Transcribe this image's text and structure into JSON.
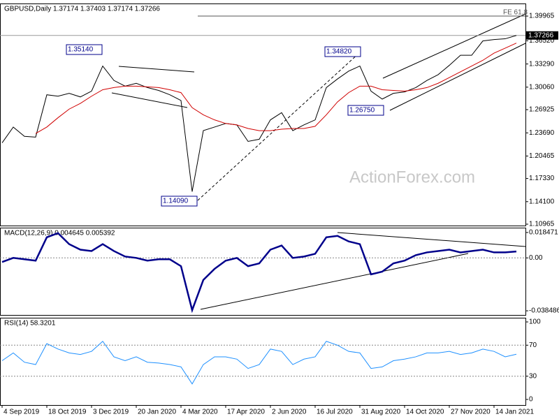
{
  "watermark": "ActionForex.com",
  "chart_data": [
    {
      "type": "line",
      "title": "GBPUSD,Daily  1.37174 1.37403 1.37174 1.37266",
      "categories": [
        "4 Sep 2019",
        null,
        null,
        null,
        "18 Oct 2019",
        null,
        null,
        null,
        "3 Dec 2019",
        null,
        null,
        null,
        "20 Jan 2020",
        null,
        null,
        null,
        "4 Mar 2020",
        null,
        null,
        null,
        "17 Apr 2020",
        null,
        null,
        null,
        "2 Jun 2020",
        null,
        null,
        null,
        "16 Jul 2020",
        null,
        null,
        null,
        "31 Aug 2020",
        null,
        null,
        null,
        "14 Oct 2020",
        null,
        null,
        null,
        "27 Nov 2020",
        null,
        null,
        null,
        "14 Jan 2021",
        null,
        null
      ],
      "series": [
        {
          "color": "#000000",
          "values": [
            1.223,
            1.245,
            1.232,
            1.231,
            1.29,
            1.288,
            1.292,
            1.287,
            1.295,
            1.33,
            1.31,
            1.302,
            1.306,
            1.3,
            1.296,
            1.29,
            1.282,
            1.155,
            1.24,
            1.245,
            1.25,
            1.248,
            1.225,
            1.228,
            1.255,
            1.265,
            1.24,
            1.248,
            1.255,
            1.3,
            1.312,
            1.323,
            1.33,
            1.295,
            1.284,
            1.292,
            1.294,
            1.3,
            1.31,
            1.318,
            1.331,
            1.345,
            1.345,
            1.365,
            1.367,
            1.368,
            1.3727
          ]
        },
        {
          "color": "#d00000",
          "values": [
            null,
            null,
            null,
            1.236,
            1.245,
            1.258,
            1.27,
            1.278,
            1.288,
            1.297,
            1.3,
            1.302,
            1.302,
            1.301,
            1.3,
            1.297,
            1.293,
            1.272,
            1.262,
            1.255,
            1.25,
            1.248,
            1.243,
            1.24,
            1.24,
            1.242,
            1.243,
            1.243,
            1.246,
            1.262,
            1.28,
            1.293,
            1.302,
            1.302,
            1.297,
            1.296,
            1.295,
            1.297,
            1.3,
            1.306,
            1.314,
            1.322,
            1.33,
            1.338,
            1.348,
            1.355,
            1.362
          ]
        }
      ],
      "ylim": [
        1.1077,
        1.4172
      ],
      "yticks": [
        1.39965,
        {
          "value": 1.3652,
          "label": "1.36520"
        },
        {
          "value": 1.3329,
          "label": "1.33290"
        },
        {
          "value": 1.3006,
          "label": "1.30060"
        },
        1.26925,
        {
          "value": 1.2369,
          "label": "1.23690"
        },
        1.20465,
        {
          "value": 1.1733,
          "label": "1.17330"
        },
        {
          "value": 1.141,
          "label": "1.14100"
        },
        1.10965
      ],
      "last_price": {
        "value": 1.37266,
        "label": "1.37266"
      },
      "annotations": [
        "1.35140",
        "1.14090",
        "1.34820",
        "1.26750",
        "FE 61.8"
      ]
    },
    {
      "type": "line",
      "title": "MACD(12,26,9) 0.004645 0.005392",
      "series": [
        {
          "color": "#00008b",
          "values": [
            -0.003,
            0.0,
            -0.001,
            -0.002,
            0.015,
            0.018,
            0.01,
            0.006,
            0.005,
            0.01,
            0.005,
            0.001,
            0.0,
            -0.002,
            -0.001,
            -0.001,
            -0.006,
            -0.038,
            -0.016,
            -0.008,
            -0.002,
            0.0,
            -0.006,
            -0.004,
            0.006,
            0.009,
            0.0,
            0.001,
            0.003,
            0.015,
            0.016,
            0.012,
            0.01,
            -0.012,
            -0.01,
            -0.004,
            -0.002,
            0.002,
            0.004,
            0.005,
            0.006,
            0.004,
            0.005,
            0.006,
            0.004,
            0.004,
            0.004645
          ]
        }
      ],
      "ylim": [
        -0.0415,
        0.022
      ],
      "yticks": [
        0.018471,
        {
          "value": 0,
          "label": "0.00"
        },
        -0.038486
      ],
      "reference_lines": [
        0
      ]
    },
    {
      "type": "line",
      "title": "RSI(14) 58.3201",
      "series": [
        {
          "color": "#1e90ff",
          "values": [
            50,
            60,
            48,
            45,
            72,
            65,
            60,
            58,
            62,
            75,
            55,
            50,
            55,
            48,
            47,
            45,
            42,
            20,
            45,
            55,
            55,
            52,
            40,
            45,
            65,
            62,
            45,
            52,
            55,
            75,
            70,
            62,
            60,
            40,
            42,
            50,
            52,
            55,
            60,
            60,
            62,
            58,
            60,
            65,
            62,
            55,
            58.3201
          ]
        }
      ],
      "ylim": [
        -7.2,
        105.4
      ],
      "yticks": [
        100,
        70,
        30,
        0
      ],
      "reference_lines": [
        70,
        30
      ]
    }
  ]
}
